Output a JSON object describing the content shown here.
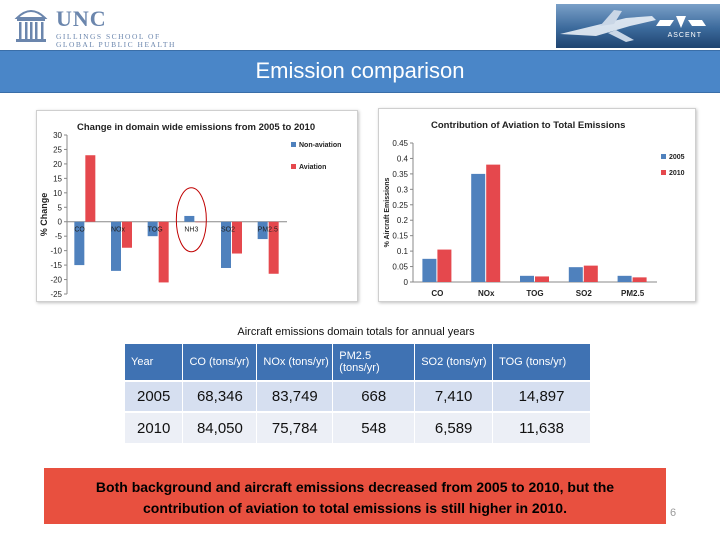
{
  "header": {
    "logo_main": "UNC",
    "logo_sub1": "GILLINGS SCHOOL OF",
    "logo_sub2": "GLOBAL PUBLIC HEALTH",
    "partner_logo_text": "ASCENT"
  },
  "title": "Emission comparison",
  "chart_data": [
    {
      "type": "bar",
      "title": "Change in domain wide emissions from 2005 to 2010",
      "xlabel": "",
      "ylabel": "% Change",
      "categories": [
        "CO",
        "NOx",
        "TOG",
        "NH3",
        "SO2",
        "PM2.5"
      ],
      "series": [
        {
          "name": "Non-aviation",
          "values": [
            -15,
            -17,
            -5,
            2,
            -16,
            -6
          ]
        },
        {
          "name": "Aviation",
          "values": [
            23,
            -9,
            -21,
            0,
            -11,
            -18
          ]
        }
      ],
      "ylim": [
        -25,
        30
      ],
      "yticks": [
        30,
        25,
        20,
        15,
        10,
        5,
        0,
        -5,
        -10,
        -15,
        -20,
        -25
      ],
      "legend": "top-right",
      "annotation": "red circle around NH3",
      "colors": {
        "Non-aviation": "#4f81bd",
        "Aviation": "#e5484d"
      }
    },
    {
      "type": "bar",
      "title": "Contribution of Aviation to Total Emissions",
      "xlabel": "",
      "ylabel": "% Aircraft Emissions",
      "categories": [
        "CO",
        "NOx",
        "TOG",
        "SO2",
        "PM2.5"
      ],
      "series": [
        {
          "name": "2005",
          "values": [
            0.075,
            0.35,
            0.02,
            0.048,
            0.02
          ]
        },
        {
          "name": "2010",
          "values": [
            0.105,
            0.38,
            0.018,
            0.053,
            0.015
          ]
        }
      ],
      "ylim": [
        0,
        0.45
      ],
      "yticks": [
        "0",
        "0.05",
        "0.1",
        "0.15",
        "0.2",
        "0.25",
        "0.3",
        "0.35",
        "0.4",
        "0.45"
      ],
      "legend": "right",
      "colors": {
        "2005": "#4f81bd",
        "2010": "#e5484d"
      }
    }
  ],
  "table": {
    "caption": "Aircraft emissions domain totals for annual years",
    "headers": [
      "Year",
      "CO (tons/yr)",
      "NOx (tons/yr)",
      "PM2.5 (tons/yr)",
      "SO2 (tons/yr)",
      "TOG (tons/yr)"
    ],
    "rows": [
      [
        "2005",
        "68,346",
        "83,749",
        "668",
        "7,410",
        "14,897"
      ],
      [
        "2010",
        "84,050",
        "75,784",
        "548",
        "6,589",
        "11,638"
      ]
    ]
  },
  "callout": "Both background and aircraft emissions decreased from 2005 to 2010, but the contribution of aviation to total emissions is still higher in 2010.",
  "page_number": "6"
}
